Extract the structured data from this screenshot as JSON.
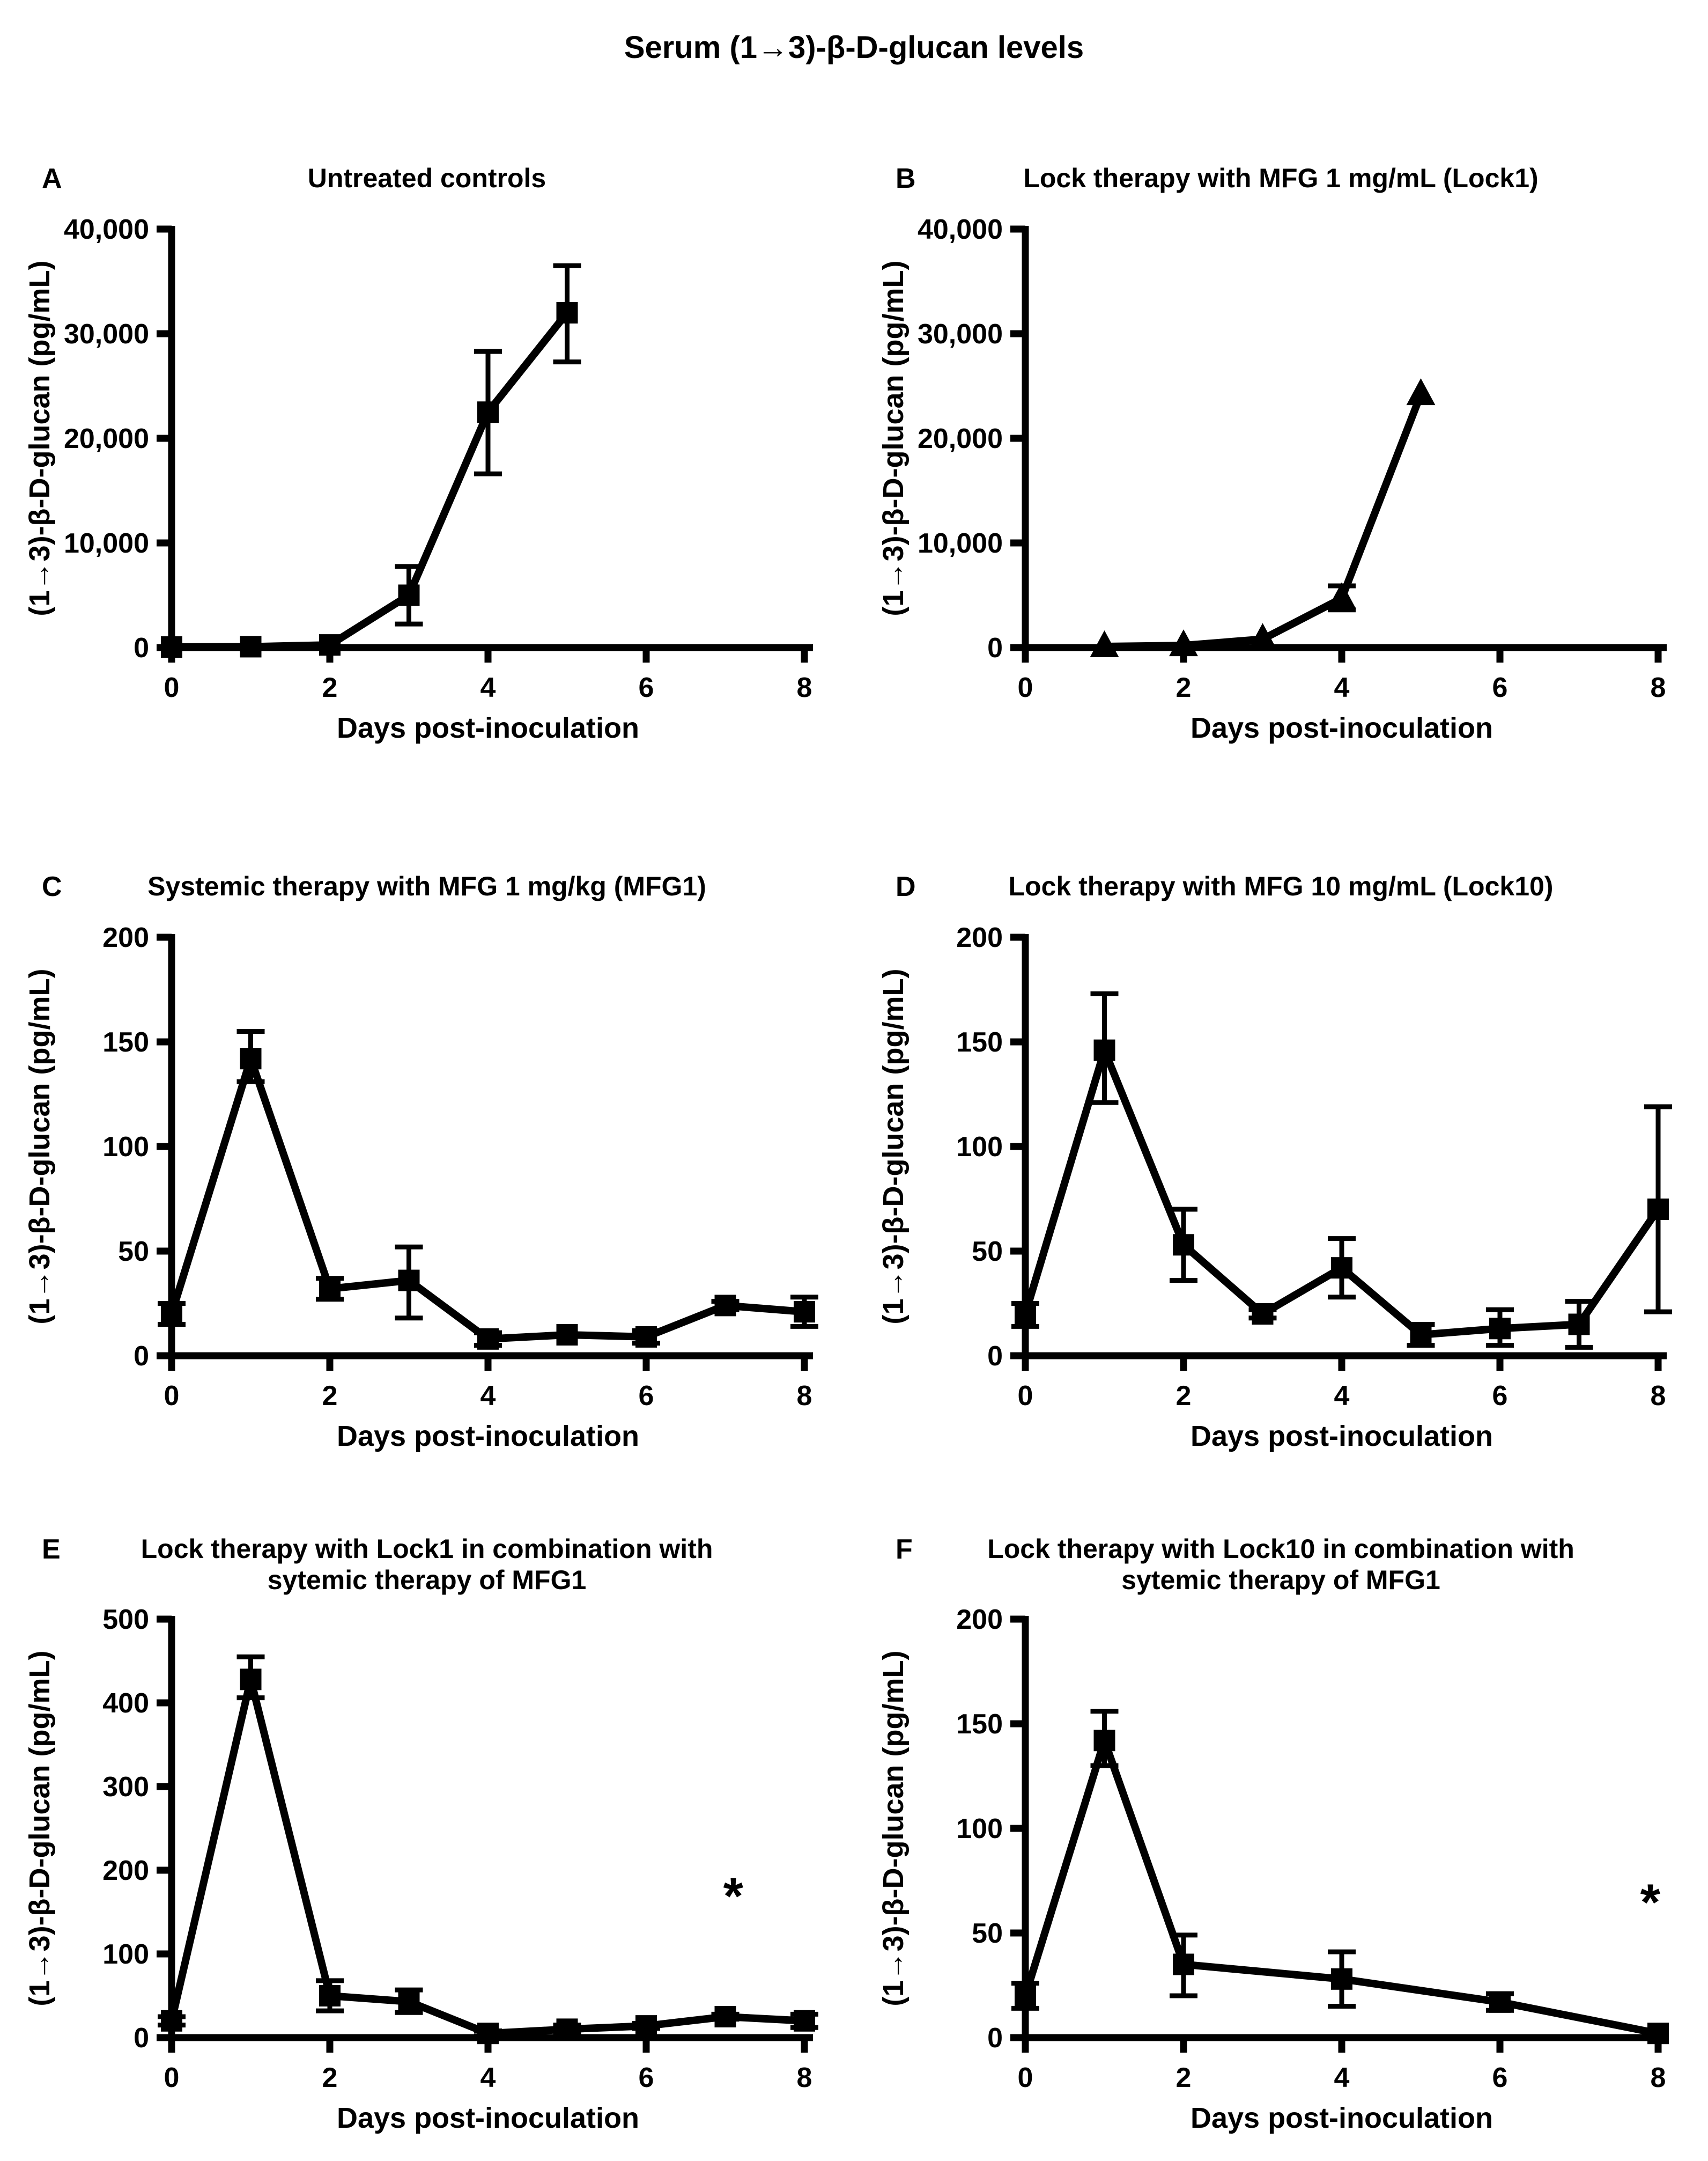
{
  "figure": {
    "title": "Serum (1→3)-β-D-glucan levels"
  },
  "axes": {
    "xlabel": "Days post-inoculation",
    "ylabel": "(1→3)-β-D-glucan  (pg/mL)"
  },
  "colors": {
    "ink": "#000000",
    "background": "#ffffff"
  },
  "chart_data": [
    {
      "panel_label": "A",
      "title": "Untreated controls",
      "type": "line",
      "marker": "square",
      "x": [
        0,
        1,
        2,
        3,
        4,
        5
      ],
      "y": [
        50,
        80,
        250,
        5000,
        22500,
        32000
      ],
      "err_lo": [
        0,
        0,
        0,
        2750,
        5900,
        4700
      ],
      "err_hi": [
        0,
        0,
        0,
        2750,
        5800,
        4500
      ],
      "xlim": [
        0,
        8
      ],
      "xticks": [
        0,
        2,
        4,
        6,
        8
      ],
      "ylim": [
        0,
        40000
      ],
      "ytick_values": [
        0,
        10000,
        20000,
        30000,
        40000
      ],
      "ytick_labels": [
        "0",
        "10,000",
        "20,000",
        "30,000",
        "40,000"
      ],
      "xlabel": "Days post-inoculation",
      "ylabel": "(1→3)-β-D-glucan  (pg/mL)",
      "annotations": []
    },
    {
      "panel_label": "B",
      "title": "Lock therapy with MFG 1 mg/mL (Lock1)",
      "type": "line",
      "marker": "triangle",
      "x": [
        1,
        2,
        3,
        4,
        5
      ],
      "y": [
        100,
        200,
        800,
        4700,
        24200
      ],
      "err_lo": [
        0,
        0,
        0,
        1100,
        0
      ],
      "err_hi": [
        0,
        0,
        0,
        1200,
        0
      ],
      "xlim": [
        0,
        8
      ],
      "xticks": [
        0,
        2,
        4,
        6,
        8
      ],
      "ylim": [
        0,
        40000
      ],
      "ytick_values": [
        0,
        10000,
        20000,
        30000,
        40000
      ],
      "ytick_labels": [
        "0",
        "10,000",
        "20,000",
        "30,000",
        "40,000"
      ],
      "xlabel": "Days post-inoculation",
      "ylabel": "(1→3)-β-D-glucan  (pg/mL)",
      "annotations": []
    },
    {
      "panel_label": "C",
      "title": "Systemic therapy with MFG 1 mg/kg (MFG1)",
      "type": "line",
      "marker": "square",
      "x": [
        0,
        1,
        2,
        3,
        4,
        5,
        6,
        7,
        8
      ],
      "y": [
        20,
        142,
        32,
        36,
        8,
        10,
        9,
        24,
        21
      ],
      "err_lo": [
        5,
        11,
        5,
        18,
        3,
        0,
        3,
        2,
        7
      ],
      "err_hi": [
        5,
        13,
        5,
        16,
        3,
        0,
        3,
        2,
        7
      ],
      "xlim": [
        0,
        8
      ],
      "xticks": [
        0,
        2,
        4,
        6,
        8
      ],
      "ylim": [
        0,
        200
      ],
      "ytick_values": [
        0,
        50,
        100,
        150,
        200
      ],
      "ytick_labels": [
        "0",
        "50",
        "100",
        "150",
        "200"
      ],
      "xlabel": "Days post-inoculation",
      "ylabel": "(1→3)-β-D-glucan  (pg/mL)",
      "annotations": []
    },
    {
      "panel_label": "D",
      "title": "Lock therapy with MFG 10 mg/mL (Lock10)",
      "type": "line",
      "marker": "square",
      "x": [
        0,
        1,
        2,
        3,
        4,
        5,
        6,
        7,
        8
      ],
      "y": [
        20,
        146,
        53,
        20,
        42,
        10,
        13,
        15,
        70
      ],
      "err_lo": [
        6,
        25,
        17,
        2,
        14,
        5,
        8,
        11,
        49
      ],
      "err_hi": [
        5,
        27,
        17,
        2,
        14,
        5,
        9,
        11,
        49
      ],
      "xlim": [
        0,
        8
      ],
      "xticks": [
        0,
        2,
        4,
        6,
        8
      ],
      "ylim": [
        0,
        200
      ],
      "ytick_values": [
        0,
        50,
        100,
        150,
        200
      ],
      "ytick_labels": [
        "0",
        "50",
        "100",
        "150",
        "200"
      ],
      "xlabel": "Days post-inoculation",
      "ylabel": "(1→3)-β-D-glucan  (pg/mL)",
      "annotations": []
    },
    {
      "panel_label": "E",
      "title": "Lock therapy with Lock1 in combination with",
      "title_line2": "sytemic therapy of MFG1",
      "type": "line",
      "marker": "square",
      "x": [
        0,
        1,
        2,
        3,
        4,
        5,
        6,
        7,
        8
      ],
      "y": [
        20,
        428,
        50,
        43,
        5,
        10,
        14,
        25,
        20
      ],
      "err_lo": [
        5,
        22,
        18,
        13,
        3,
        5,
        3,
        3,
        8
      ],
      "err_hi": [
        5,
        27,
        18,
        14,
        3,
        5,
        3,
        3,
        8
      ],
      "xlim": [
        0,
        8
      ],
      "xticks": [
        0,
        2,
        4,
        6,
        8
      ],
      "ylim": [
        0,
        500
      ],
      "ytick_values": [
        0,
        100,
        200,
        300,
        400,
        500
      ],
      "ytick_labels": [
        "0",
        "100",
        "200",
        "300",
        "400",
        "500"
      ],
      "xlabel": "Days post-inoculation",
      "ylabel": "(1→3)-β-D-glucan  (pg/mL)",
      "annotations": [
        {
          "text": "*",
          "x": 7.1,
          "y": 170
        }
      ]
    },
    {
      "panel_label": "F",
      "title": "Lock therapy with Lock10 in combination with",
      "title_line2": "sytemic therapy of MFG1",
      "type": "line",
      "marker": "square",
      "x": [
        0,
        1,
        2,
        4,
        6,
        8
      ],
      "y": [
        20,
        142,
        35,
        28,
        17,
        2
      ],
      "err_lo": [
        6,
        12,
        15,
        13,
        4,
        0
      ],
      "err_hi": [
        6,
        14,
        14,
        13,
        4,
        0
      ],
      "xlim": [
        0,
        8
      ],
      "xticks": [
        0,
        2,
        4,
        6,
        8
      ],
      "ylim": [
        0,
        200
      ],
      "ytick_values": [
        0,
        50,
        100,
        150,
        200
      ],
      "ytick_labels": [
        "0",
        "50",
        "100",
        "150",
        "200"
      ],
      "xlabel": "Days post-inoculation",
      "ylabel": "(1→3)-β-D-glucan  (pg/mL)",
      "annotations": [
        {
          "text": "*",
          "x": 7.9,
          "y": 65
        }
      ]
    }
  ]
}
